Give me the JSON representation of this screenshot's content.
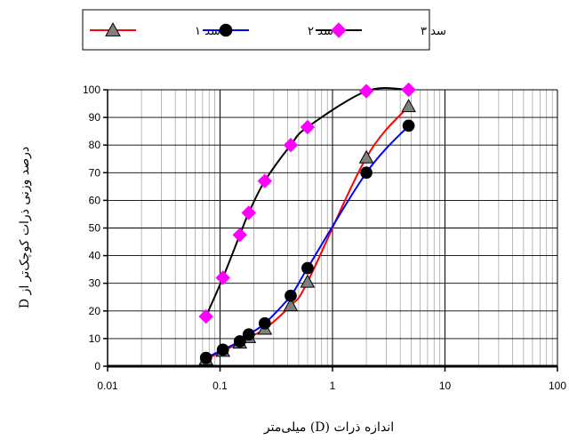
{
  "chart_data": {
    "type": "line",
    "x_scale": "log",
    "xlim": [
      0.01,
      100
    ],
    "ylim": [
      0,
      100
    ],
    "grid": true,
    "legend_position": "top",
    "xlabel": "اندازه ذرات (D) میلی‌متر",
    "ylabel": "درصد وزنی ذرات کوچک‌تر از D",
    "x_ticks": [
      "0.01",
      "0.1",
      "1",
      "10",
      "100"
    ],
    "y_ticks": [
      "0",
      "10",
      "20",
      "30",
      "40",
      "50",
      "60",
      "70",
      "80",
      "90",
      "100"
    ],
    "series": [
      {
        "name": "سد ۱",
        "color": "#ff0000",
        "marker": "triangle",
        "marker_color": "#808080",
        "x": [
          0.075,
          0.106,
          0.15,
          0.18,
          0.25,
          0.425,
          0.6,
          2.0,
          4.75
        ],
        "y": [
          2.5,
          5.5,
          8.5,
          10.5,
          13.5,
          22,
          30.5,
          75.5,
          94
        ]
      },
      {
        "name": "سد ۲",
        "color": "#0000ff",
        "marker": "circle",
        "marker_color": "#000000",
        "x": [
          0.075,
          0.106,
          0.15,
          0.18,
          0.25,
          0.425,
          0.6,
          2.0,
          4.75
        ],
        "y": [
          3,
          6,
          9,
          11.5,
          15.5,
          25.5,
          35.5,
          70,
          87
        ]
      },
      {
        "name": "سد ۳",
        "color": "#000000",
        "marker": "diamond",
        "marker_color": "#ff00ff",
        "x": [
          0.075,
          0.106,
          0.15,
          0.18,
          0.25,
          0.425,
          0.6,
          2.0,
          4.75
        ],
        "y": [
          18,
          32,
          47.5,
          55.5,
          67,
          80,
          86.5,
          99.5,
          100
        ]
      }
    ]
  }
}
